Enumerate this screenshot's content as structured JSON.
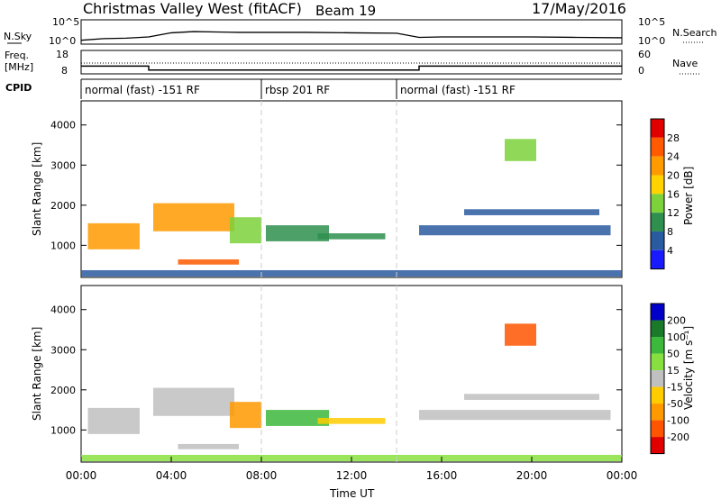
{
  "header": {
    "title": "Christmas Valley West (fitACF)",
    "beam": "Beam 19",
    "date": "17/May/2016"
  },
  "top_panel": {
    "left_label": "N.Sky",
    "left_ticks": [
      "10^5",
      "10^0"
    ],
    "right_label": "N.Search",
    "right_ticks": [
      "10^5",
      "10^0"
    ]
  },
  "freq_panel": {
    "left_label_1": "Freq.",
    "left_label_2": "[MHz]",
    "left_ticks": [
      "18",
      "8"
    ],
    "right_label": "Nave",
    "right_ticks": [
      "60",
      "0"
    ]
  },
  "cpid": {
    "label": "CPID",
    "segments": [
      {
        "label": "normal (fast) -151 RF",
        "start_hour": 0,
        "end_hour": 8
      },
      {
        "label": "rbsp 201 RF",
        "start_hour": 8,
        "end_hour": 14
      },
      {
        "label": "normal (fast) -151 RF",
        "start_hour": 14,
        "end_hour": 24
      }
    ]
  },
  "colors": {
    "power_scale": [
      "#1a1aff",
      "#2a5aa0",
      "#2f8f4f",
      "#7dd13a",
      "#ffd200",
      "#ff9a00",
      "#ff5a00",
      "#e00000"
    ],
    "velocity_scale": [
      "#0000c8",
      "#1a7a2a",
      "#3cb83c",
      "#88e040",
      "#c0c0c0",
      "#ffcc00",
      "#ff9900",
      "#ff5500",
      "#e00000"
    ],
    "grid_line": "#cccccc"
  },
  "chart_data": [
    {
      "type": "line",
      "title": "Christmas Valley West (fitACF)",
      "series": [
        {
          "name": "N.Sky",
          "x": [
            0,
            1,
            2,
            3,
            4,
            5,
            6,
            7,
            8,
            10,
            12,
            14,
            15,
            16,
            18,
            20,
            22,
            24
          ],
          "values": [
            0.5,
            0.9,
            1.0,
            1.3,
            2.3,
            2.6,
            2.5,
            2.4,
            2.4,
            2.4,
            2.3,
            2.2,
            1.2,
            1.3,
            1.3,
            1.3,
            1.2,
            1.1
          ]
        }
      ],
      "xlim": [
        0,
        24
      ]
    },
    {
      "type": "line",
      "series": [
        {
          "name": "Freq.",
          "x": [
            0,
            3,
            3,
            15,
            15,
            24
          ],
          "values": [
            11,
            11,
            9,
            9,
            11,
            11
          ]
        }
      ],
      "ylim": [
        8,
        18
      ],
      "xlim": [
        0,
        24
      ]
    },
    {
      "type": "heatmap",
      "title": "Power",
      "ylabel": "Slant Range [km]",
      "colorbar_label": "Power [dB]",
      "colorbar_ticks": [
        "4",
        "8",
        "12",
        "16",
        "20",
        "24",
        "28"
      ],
      "yticks": [
        "1000",
        "2000",
        "3000",
        "4000"
      ],
      "ylim": [
        200,
        4600
      ],
      "xlim": [
        0,
        24
      ],
      "regions": [
        {
          "x0": 0.3,
          "x1": 2.6,
          "y0": 900,
          "y1": 1550,
          "value": 22
        },
        {
          "x0": 3.2,
          "x1": 6.8,
          "y0": 1350,
          "y1": 2050,
          "value": 24
        },
        {
          "x0": 4.3,
          "x1": 7.0,
          "y0": 520,
          "y1": 650,
          "value": 26
        },
        {
          "x0": 6.6,
          "x1": 8.0,
          "y0": 1050,
          "y1": 1700,
          "value": 14
        },
        {
          "x0": 8.2,
          "x1": 11.0,
          "y0": 1100,
          "y1": 1500,
          "value": 12
        },
        {
          "x0": 10.5,
          "x1": 13.5,
          "y0": 1150,
          "y1": 1300,
          "value": 10
        },
        {
          "x0": 15.0,
          "x1": 23.5,
          "y0": 1250,
          "y1": 1500,
          "value": 8
        },
        {
          "x0": 17.0,
          "x1": 23.0,
          "y0": 1750,
          "y1": 1900,
          "value": 6
        },
        {
          "x0": 18.8,
          "x1": 20.2,
          "y0": 3100,
          "y1": 3650,
          "value": 16
        },
        {
          "x0": 0,
          "x1": 24,
          "y0": 220,
          "y1": 380,
          "value": 8
        }
      ]
    },
    {
      "type": "heatmap",
      "title": "Velocity",
      "ylabel": "Slant Range [km]",
      "xlabel": "Time UT",
      "colorbar_label": "Velocity [m s⁻¹]",
      "colorbar_ticks": [
        "200",
        "100",
        "50",
        "15",
        "-15",
        "-50",
        "-100",
        "-200"
      ],
      "yticks": [
        "1000",
        "2000",
        "3000",
        "4000"
      ],
      "xticks": [
        "00:00",
        "04:00",
        "08:00",
        "12:00",
        "16:00",
        "20:00",
        "00:00"
      ],
      "ylim": [
        200,
        4600
      ],
      "xlim": [
        0,
        24
      ],
      "regions": [
        {
          "x0": 0.3,
          "x1": 2.6,
          "y0": 900,
          "y1": 1550,
          "value": 0
        },
        {
          "x0": 3.2,
          "x1": 6.8,
          "y0": 1350,
          "y1": 2050,
          "value": 0
        },
        {
          "x0": 4.3,
          "x1": 7.0,
          "y0": 520,
          "y1": 650,
          "value": 0
        },
        {
          "x0": 6.6,
          "x1": 8.0,
          "y0": 1050,
          "y1": 1700,
          "value": -80
        },
        {
          "x0": 8.2,
          "x1": 11.0,
          "y0": 1100,
          "y1": 1500,
          "value": 60
        },
        {
          "x0": 10.5,
          "x1": 13.5,
          "y0": 1150,
          "y1": 1300,
          "value": -40
        },
        {
          "x0": 15.0,
          "x1": 23.5,
          "y0": 1250,
          "y1": 1500,
          "value": 0
        },
        {
          "x0": 17.0,
          "x1": 23.0,
          "y0": 1750,
          "y1": 1900,
          "value": 0
        },
        {
          "x0": 18.8,
          "x1": 20.2,
          "y0": 3100,
          "y1": 3650,
          "value": -200
        },
        {
          "x0": 0,
          "x1": 24,
          "y0": 220,
          "y1": 380,
          "value": 30
        }
      ]
    }
  ]
}
